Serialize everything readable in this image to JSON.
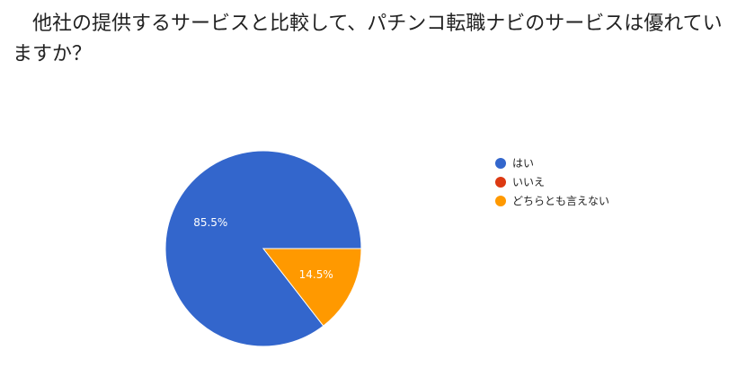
{
  "chart_data": {
    "type": "pie",
    "title": "他社の提供するサービスと比較して、パチンコ転職ナビのサービスは優れていますか？",
    "categories": [
      "はい",
      "いいえ",
      "どちらとも言えない"
    ],
    "values": [
      85.5,
      0,
      14.5
    ],
    "value_labels": [
      "85.5%",
      "",
      "14.5%"
    ],
    "colors": [
      "#3366cc",
      "#dc3912",
      "#ff9900"
    ],
    "legend_position": "right"
  }
}
